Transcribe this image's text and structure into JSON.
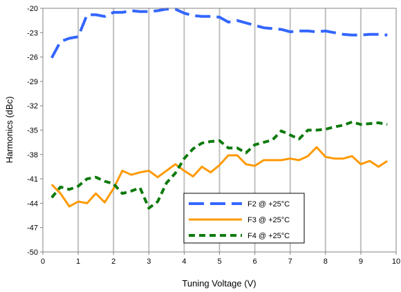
{
  "chart_data": {
    "type": "line",
    "title": "",
    "xlabel": "Tuning Voltage (V)",
    "ylabel": "Harmonics (dBc)",
    "xlim": [
      0,
      10
    ],
    "ylim": [
      -50,
      -20
    ],
    "x_ticks": [
      "0",
      "1",
      "2",
      "3",
      "4",
      "5",
      "6",
      "7",
      "8",
      "9",
      "10"
    ],
    "y_ticks": [
      "-20",
      "-23",
      "-26",
      "-29",
      "-32",
      "-35",
      "-38",
      "-41",
      "-44",
      "-47",
      "-50"
    ],
    "grid": "vertical",
    "legend_position": "lower-center",
    "series": [
      {
        "name": "F2 @ +25°C",
        "color": "#3366ff",
        "style": "long-dash",
        "x": [
          0.25,
          0.5,
          0.75,
          1.0,
          1.25,
          1.5,
          1.75,
          2.0,
          2.25,
          2.5,
          2.75,
          3.0,
          3.25,
          3.5,
          3.75,
          4.0,
          4.25,
          4.5,
          4.75,
          5.0,
          5.25,
          5.5,
          5.75,
          6.0,
          6.25,
          6.5,
          6.75,
          7.0,
          7.25,
          7.5,
          7.75,
          8.0,
          8.25,
          8.5,
          8.75,
          9.0,
          9.25,
          9.5,
          9.75
        ],
        "values": [
          -26.1,
          -24.1,
          -23.7,
          -23.5,
          -20.8,
          -20.8,
          -21.0,
          -20.5,
          -20.5,
          -20.3,
          -20.4,
          -20.4,
          -20.3,
          -20.1,
          -20.1,
          -20.6,
          -20.9,
          -21.0,
          -21.0,
          -21.1,
          -21.7,
          -21.5,
          -21.8,
          -22.1,
          -22.4,
          -22.5,
          -22.6,
          -22.9,
          -22.8,
          -22.8,
          -22.9,
          -22.8,
          -23.0,
          -23.2,
          -23.3,
          -23.3,
          -23.2,
          -23.2,
          -23.3
        ]
      },
      {
        "name": "F3 @ +25°C",
        "color": "#ff9900",
        "style": "solid",
        "x": [
          0.25,
          0.5,
          0.75,
          1.0,
          1.25,
          1.5,
          1.75,
          2.0,
          2.25,
          2.5,
          2.75,
          3.0,
          3.25,
          3.5,
          3.75,
          4.0,
          4.25,
          4.5,
          4.75,
          5.0,
          5.25,
          5.5,
          5.75,
          6.0,
          6.25,
          6.5,
          6.75,
          7.0,
          7.25,
          7.5,
          7.75,
          8.0,
          8.25,
          8.5,
          8.75,
          9.0,
          9.25,
          9.5,
          9.75
        ],
        "values": [
          -41.7,
          -42.8,
          -44.4,
          -43.8,
          -44.0,
          -42.8,
          -43.9,
          -42.2,
          -40.0,
          -40.5,
          -40.2,
          -40.0,
          -40.8,
          -40.0,
          -39.2,
          -40.0,
          -40.7,
          -39.5,
          -40.2,
          -39.3,
          -38.1,
          -38.1,
          -39.2,
          -39.4,
          -38.7,
          -38.7,
          -38.7,
          -38.5,
          -38.7,
          -38.2,
          -37.1,
          -38.3,
          -38.5,
          -38.5,
          -38.2,
          -39.2,
          -38.8,
          -39.5,
          -38.8
        ]
      },
      {
        "name": "F4 @ +25°C",
        "color": "#0d7a0d",
        "style": "dashed",
        "x": [
          0.25,
          0.5,
          0.75,
          1.0,
          1.25,
          1.5,
          1.75,
          2.0,
          2.25,
          2.5,
          2.75,
          3.0,
          3.25,
          3.5,
          3.75,
          4.0,
          4.25,
          4.5,
          4.75,
          5.0,
          5.25,
          5.5,
          5.75,
          6.0,
          6.25,
          6.5,
          6.75,
          7.0,
          7.25,
          7.5,
          7.75,
          8.0,
          8.25,
          8.5,
          8.75,
          9.0,
          9.25,
          9.5,
          9.75
        ],
        "values": [
          -43.3,
          -42.0,
          -42.3,
          -41.9,
          -41.0,
          -40.8,
          -41.3,
          -41.6,
          -42.8,
          -42.5,
          -42.1,
          -44.6,
          -43.8,
          -41.5,
          -40.3,
          -38.5,
          -37.3,
          -36.6,
          -36.4,
          -36.3,
          -37.2,
          -37.2,
          -37.8,
          -36.8,
          -36.5,
          -36.2,
          -35.1,
          -35.6,
          -36.1,
          -35.0,
          -35.0,
          -34.9,
          -34.6,
          -34.4,
          -34.0,
          -34.3,
          -34.2,
          -34.1,
          -34.3
        ]
      }
    ]
  }
}
